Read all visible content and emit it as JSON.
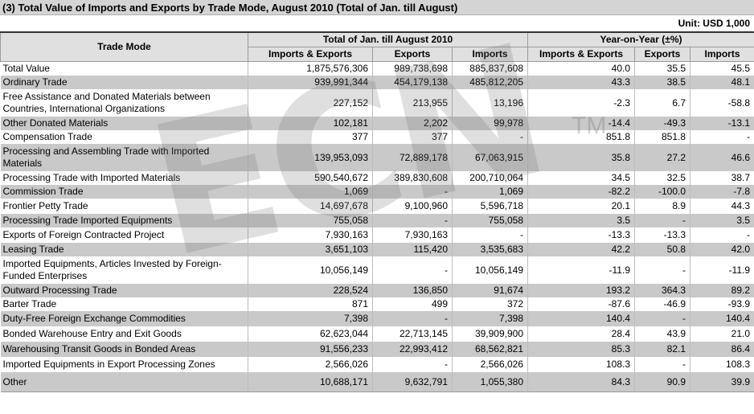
{
  "title": "(3) Total Value of Imports and Exports by Trade Mode, August 2010 (Total of Jan. till August)",
  "unit": "Unit: USD 1,000",
  "header": {
    "trade_mode": "Trade Mode",
    "group_total": "Total of Jan. till August 2010",
    "group_yoy": "Year-on-Year (±%)",
    "col_ie": "Imports & Exports",
    "col_exports": "Exports",
    "col_imports": "Imports"
  },
  "watermark": {
    "text": "ECN",
    "tm": "TM"
  },
  "rows": [
    {
      "name": "Total Value",
      "ie": "1,875,576,306",
      "ex": "989,738,698",
      "im": "885,837,608",
      "yie": "40.0",
      "yex": "35.5",
      "yim": "45.5"
    },
    {
      "name": "Ordinary Trade",
      "ie": "939,991,344",
      "ex": "454,179,138",
      "im": "485,812,205",
      "yie": "43.3",
      "yex": "38.5",
      "yim": "48.1"
    },
    {
      "name": "Free Assistance and Donated Materials between Countries, International Organizations",
      "ie": "227,152",
      "ex": "213,955",
      "im": "13,196",
      "yie": "-2.3",
      "yex": "6.7",
      "yim": "-58.8"
    },
    {
      "name": "Other Donated Materials",
      "ie": "102,181",
      "ex": "2,202",
      "im": "99,978",
      "yie": "-14.4",
      "yex": "-49.3",
      "yim": "-13.1"
    },
    {
      "name": "Compensation Trade",
      "ie": "377",
      "ex": "377",
      "im": "-",
      "yie": "851.8",
      "yex": "851.8",
      "yim": "-"
    },
    {
      "name": "Processing and Assembling Trade with Imported Materials",
      "ie": "139,953,093",
      "ex": "72,889,178",
      "im": "67,063,915",
      "yie": "35.8",
      "yex": "27.2",
      "yim": "46.6"
    },
    {
      "name": "Processing Trade with Imported Materials",
      "ie": "590,540,672",
      "ex": "389,830,608",
      "im": "200,710,064",
      "yie": "34.5",
      "yex": "32.5",
      "yim": "38.7"
    },
    {
      "name": "Commission Trade",
      "ie": "1,069",
      "ex": "-",
      "im": "1,069",
      "yie": "-82.2",
      "yex": "-100.0",
      "yim": "-7.8"
    },
    {
      "name": "Frontier Petty Trade",
      "ie": "14,697,678",
      "ex": "9,100,960",
      "im": "5,596,718",
      "yie": "20.1",
      "yex": "8.9",
      "yim": "44.3"
    },
    {
      "name": "Processing Trade Imported Equipments",
      "ie": "755,058",
      "ex": "-",
      "im": "755,058",
      "yie": "3.5",
      "yex": "-",
      "yim": "3.5"
    },
    {
      "name": "Exports of Foreign Contracted Project",
      "ie": "7,930,163",
      "ex": "7,930,163",
      "im": "-",
      "yie": "-13.3",
      "yex": "-13.3",
      "yim": "-"
    },
    {
      "name": "Leasing Trade",
      "ie": "3,651,103",
      "ex": "115,420",
      "im": "3,535,683",
      "yie": "42.2",
      "yex": "50.8",
      "yim": "42.0"
    },
    {
      "name": "Imported Equipments, Articles Invested by Foreign-Funded Enterprises",
      "ie": "10,056,149",
      "ex": "-",
      "im": "10,056,149",
      "yie": "-11.9",
      "yex": "-",
      "yim": "-11.9"
    },
    {
      "name": "Outward Processing Trade",
      "ie": "228,524",
      "ex": "136,850",
      "im": "91,674",
      "yie": "193.2",
      "yex": "364.3",
      "yim": "89.2"
    },
    {
      "name": "Barter Trade",
      "ie": "871",
      "ex": "499",
      "im": "372",
      "yie": "-87.6",
      "yex": "-46.9",
      "yim": "-93.9"
    },
    {
      "name": "Duty-Free Foreign Exchange Commodities",
      "ie": "7,398",
      "ex": "-",
      "im": "7,398",
      "yie": "140.4",
      "yex": "-",
      "yim": "140.4"
    },
    {
      "name": "Bonded Warehouse Entry and Exit Goods",
      "ie": "62,623,044",
      "ex": "22,713,145",
      "im": "39,909,900",
      "yie": "28.4",
      "yex": "43.9",
      "yim": "21.0"
    },
    {
      "name": "Warehousing Transit Goods in Bonded Areas",
      "ie": "91,556,233",
      "ex": "22,993,412",
      "im": "68,562,821",
      "yie": "85.3",
      "yex": "82.1",
      "yim": "86.4"
    },
    {
      "name": "Imported Equipments in Export Processing Zones",
      "ie": "2,566,026",
      "ex": "-",
      "im": "2,566,026",
      "yie": "108.3",
      "yex": "-",
      "yim": "108.3"
    },
    {
      "name": "Other",
      "ie": "10,688,171",
      "ex": "9,632,791",
      "im": "1,055,380",
      "yie": "84.3",
      "yex": "90.9",
      "yim": "39.9"
    }
  ]
}
